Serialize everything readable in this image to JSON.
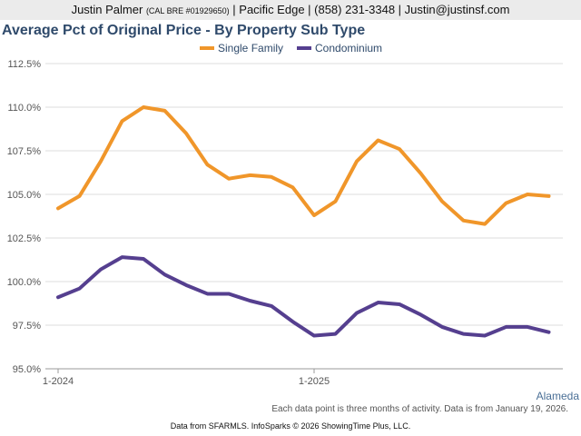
{
  "header": {
    "name": "Justin Palmer",
    "license": "(CAL BRE #01929650)",
    "rest": "| Pacific Edge | (858) 231-3348 | Justin@justinsf.com"
  },
  "region": "Alameda",
  "footnote": "Each data point is three months of activity. Data is from January 19, 2026.",
  "source": "Data from SFARMLS. InfoSparks © 2026 ShowingTime Plus, LLC.",
  "chart_data": {
    "type": "line",
    "title": "Average Pct of Original Price - By Property Sub Type",
    "ylim": [
      95,
      112.5
    ],
    "yticks": [
      "95.0%",
      "97.5%",
      "100.0%",
      "102.5%",
      "105.0%",
      "107.5%",
      "110.0%",
      "112.5%"
    ],
    "ytick_values": [
      95,
      97.5,
      100,
      102.5,
      105,
      107.5,
      110,
      112.5
    ],
    "xtick_labels": [
      {
        "index": 0,
        "label": "1-2024"
      },
      {
        "index": 12,
        "label": "1-2025"
      }
    ],
    "x": [
      "2024-01",
      "2024-02",
      "2024-03",
      "2024-04",
      "2024-05",
      "2024-06",
      "2024-07",
      "2024-08",
      "2024-09",
      "2024-10",
      "2024-11",
      "2024-12",
      "2025-01",
      "2025-02",
      "2025-03",
      "2025-04",
      "2025-05",
      "2025-06",
      "2025-07",
      "2025-08",
      "2025-09",
      "2025-10",
      "2025-11",
      "2025-12"
    ],
    "grid": "horizontal",
    "legend": "top-center",
    "series": [
      {
        "name": "Single Family",
        "color": "#f0962a",
        "values": [
          104.2,
          104.9,
          106.9,
          109.2,
          110.0,
          109.8,
          108.5,
          106.7,
          105.9,
          106.1,
          106.0,
          105.4,
          103.8,
          104.6,
          106.9,
          108.1,
          107.6,
          106.2,
          104.6,
          103.5,
          103.3,
          104.5,
          105.0,
          104.9
        ]
      },
      {
        "name": "Condominium",
        "color": "#553f8f",
        "values": [
          99.1,
          99.6,
          100.7,
          101.4,
          101.3,
          100.4,
          99.8,
          99.3,
          99.3,
          98.9,
          98.6,
          97.7,
          96.9,
          97.0,
          98.2,
          98.8,
          98.7,
          98.1,
          97.4,
          97.0,
          96.9,
          97.4,
          97.4,
          97.1
        ]
      }
    ]
  }
}
